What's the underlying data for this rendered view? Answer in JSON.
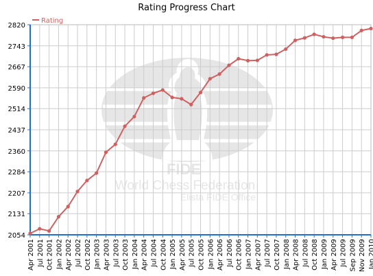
{
  "chart_data": {
    "type": "line",
    "title": "Rating Progress Chart",
    "xlabel": "",
    "ylabel": "",
    "ylim": [
      2054,
      2820
    ],
    "yticks": [
      2054,
      2131,
      2207,
      2284,
      2360,
      2437,
      2514,
      2590,
      2667,
      2743,
      2820
    ],
    "grid": true,
    "legend_position": "top-left",
    "categories": [
      "Apr 2001",
      "Jul 2001",
      "Oct 2001",
      "Jan 2002",
      "Apr 2002",
      "Jul 2002",
      "Oct 2002",
      "Jan 2003",
      "Apr 2003",
      "Jul 2003",
      "Oct 2003",
      "Jan 2004",
      "Apr 2004",
      "Jul 2004",
      "Oct 2004",
      "Jan 2005",
      "Apr 2005",
      "Jul 2005",
      "Oct 2005",
      "Jan 2006",
      "Apr 2006",
      "Jul 2006",
      "Oct 2006",
      "Jan 2007",
      "Apr 2007",
      "Jul 2007",
      "Oct 2007",
      "Jan 2008",
      "Apr 2008",
      "Jul 2008",
      "Oct 2008",
      "Jan 2009",
      "Apr 2009",
      "Jul 2009",
      "Sep 2009",
      "Nov 2009",
      "Jan 2010"
    ],
    "series": [
      {
        "name": "Rating",
        "color": "#d06060",
        "values": [
          2059,
          2076,
          2068,
          2120,
          2157,
          2212,
          2252,
          2279,
          2355,
          2384,
          2450,
          2485,
          2553,
          2570,
          2582,
          2555,
          2550,
          2529,
          2573,
          2623,
          2640,
          2672,
          2696,
          2689,
          2690,
          2710,
          2712,
          2731,
          2763,
          2772,
          2785,
          2776,
          2771,
          2774,
          2774,
          2799,
          2806
        ]
      }
    ],
    "watermark": {
      "org": "FIDE",
      "line1": "World Chess Federation",
      "line2": "Elista FIDE Office"
    }
  },
  "colors": {
    "line": "#d06060",
    "axis": "#1f6fd1",
    "grid": "#cccccc",
    "watermark": "#e6e6e6"
  }
}
